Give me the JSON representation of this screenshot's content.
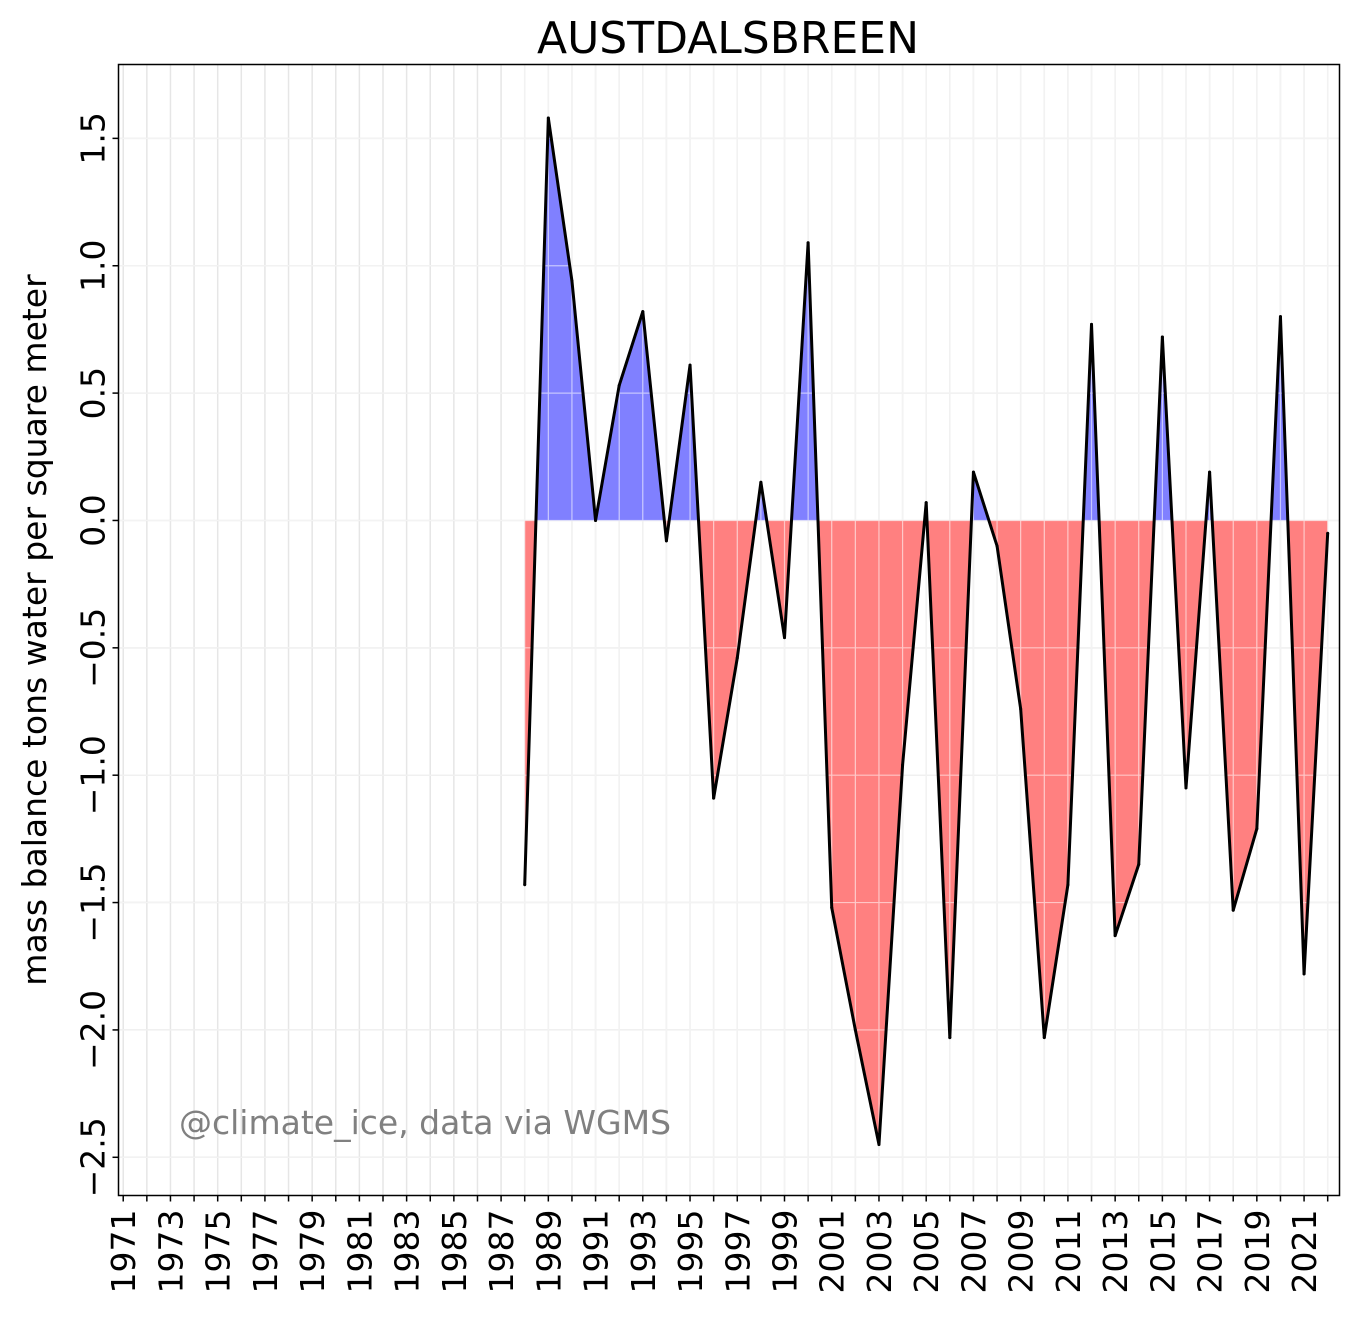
{
  "chart_data": {
    "type": "area",
    "title": "AUSTDALSBREEN",
    "xlabel": "",
    "ylabel": "mass balance tons water per square meter",
    "annotation": "@climate_ice, data via WGMS",
    "xlim": [
      1970.8,
      2022.5
    ],
    "ylim": [
      -2.65,
      1.79
    ],
    "x_ticks": [
      1971,
      1973,
      1975,
      1977,
      1979,
      1981,
      1983,
      1985,
      1987,
      1989,
      1991,
      1993,
      1995,
      1997,
      1999,
      2001,
      2003,
      2005,
      2007,
      2009,
      2011,
      2013,
      2015,
      2017,
      2019,
      2021
    ],
    "y_ticks": [
      1.5,
      1.0,
      0.5,
      0.0,
      -0.5,
      -1.0,
      -1.5,
      -2.0,
      -2.5
    ],
    "y_tick_labels": [
      "1.5",
      "1.0",
      "0.5",
      "0.0",
      "−0.5",
      "−1.0",
      "−1.5",
      "−2.0",
      "−2.5"
    ],
    "grid": true,
    "colors": {
      "positive_fill": "#8080ff",
      "negative_fill": "#ff8080",
      "line": "#000000",
      "grid": "#e6e6e6"
    },
    "series": [
      {
        "x": [
          1988,
          1989,
          1990,
          1991,
          1992,
          1993,
          1994,
          1995,
          1996,
          1997,
          1998,
          1999,
          2000,
          2001,
          2002,
          2003,
          2004,
          2005,
          2006,
          2007,
          2008,
          2009,
          2010,
          2011,
          2012,
          2013,
          2014,
          2015,
          2016,
          2017,
          2018,
          2019,
          2020,
          2021,
          2022
        ],
        "values": [
          -1.43,
          1.58,
          0.94,
          0.0,
          0.53,
          0.82,
          -0.08,
          0.61,
          -1.09,
          -0.54,
          0.15,
          -0.46,
          1.09,
          -1.52,
          -2.0,
          -2.45,
          -0.96,
          0.07,
          -2.03,
          0.19,
          -0.1,
          -0.74,
          -2.03,
          -1.43,
          0.77,
          -1.63,
          -1.35,
          0.72,
          -1.05,
          0.19,
          -1.53,
          -1.21,
          0.8,
          -1.78,
          -0.05
        ]
      }
    ]
  }
}
